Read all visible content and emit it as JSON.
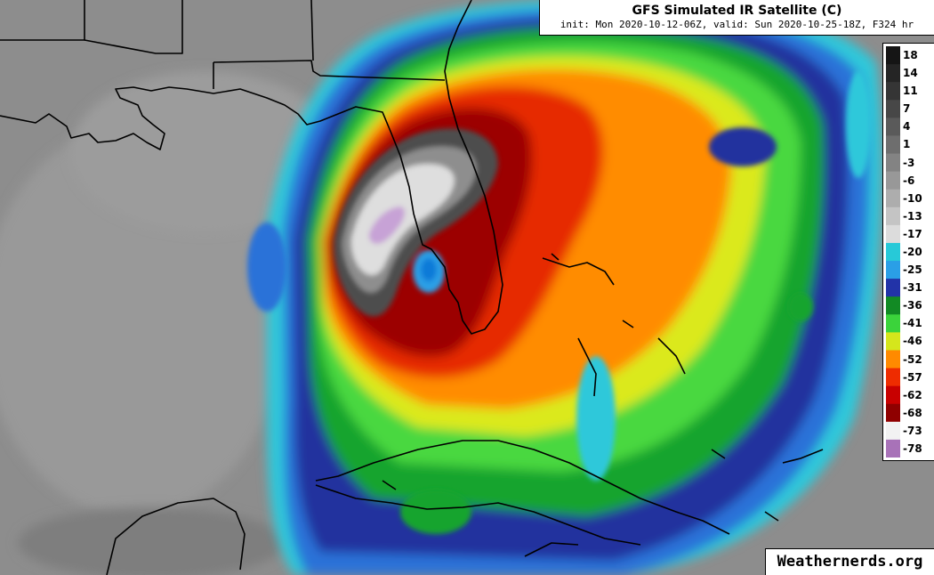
{
  "header": {
    "title": "GFS Simulated IR Satellite (C)",
    "subtitle": "init: Mon 2020-10-12-06Z, valid: Sun 2020-10-25-18Z, F324 hr"
  },
  "legend": {
    "labels": [
      "18",
      "14",
      "11",
      "7",
      "4",
      "1",
      "-3",
      "-6",
      "-10",
      "-13",
      "-17",
      "-20",
      "-25",
      "-31",
      "-36",
      "-41",
      "-46",
      "-52",
      "-57",
      "-62",
      "-68",
      "-73",
      "-78"
    ],
    "colors": [
      "#151515",
      "#252525",
      "#353535",
      "#474747",
      "#5a5a5a",
      "#6e6e6e",
      "#838383",
      "#989898",
      "#adadad",
      "#c4c4c4",
      "#dcdcdc",
      "#27c9d8",
      "#2a9fe6",
      "#2233a8",
      "#128a24",
      "#3bd33b",
      "#d5e61c",
      "#ff8a00",
      "#ee2c00",
      "#c80000",
      "#8f0000",
      "#f2f2f2",
      "#a872b8"
    ]
  },
  "credit": "Weathernerds.org"
}
